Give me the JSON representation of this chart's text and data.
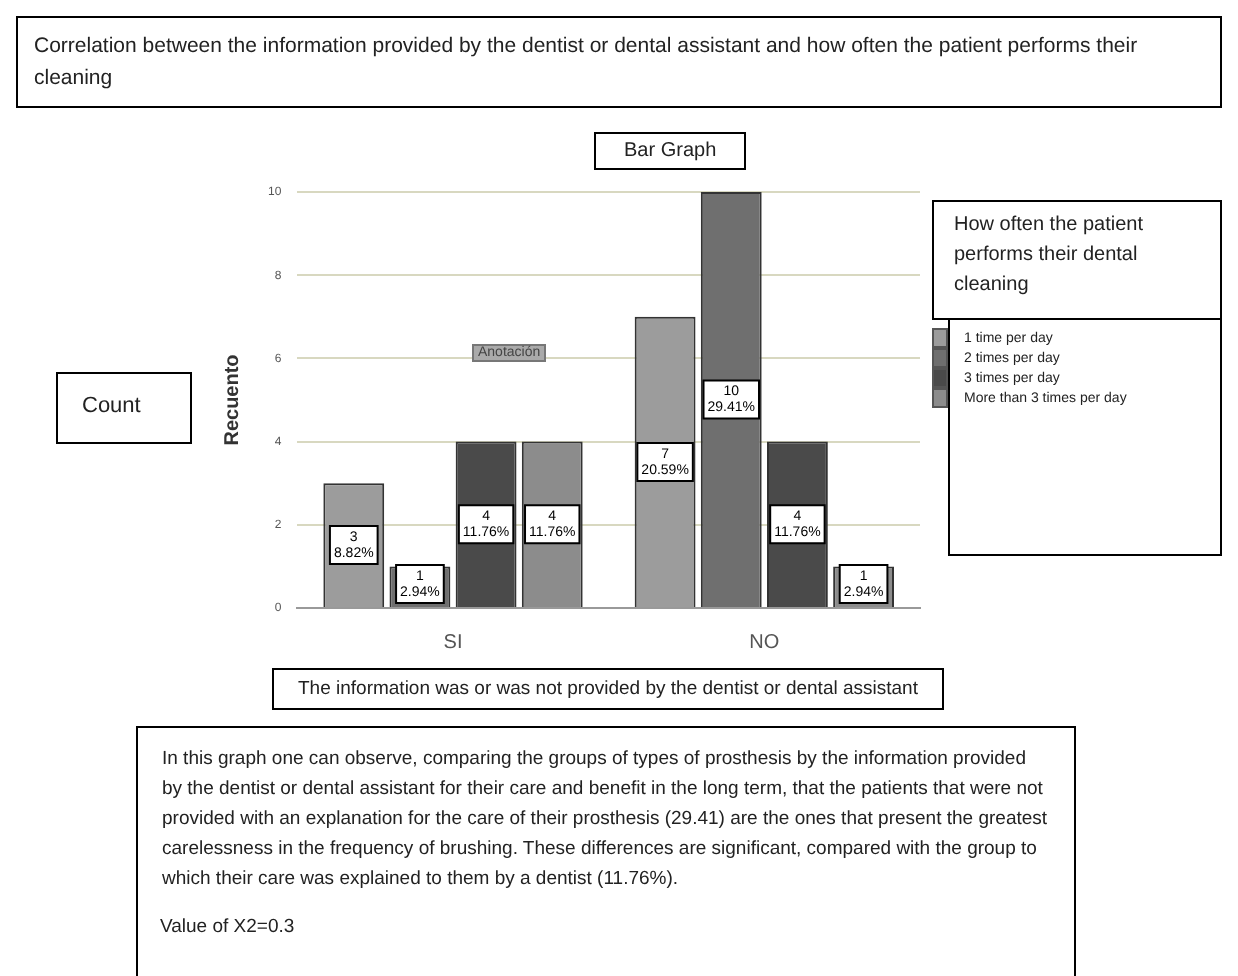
{
  "chart_data": {
    "type": "bar",
    "title": "Correlation between the information provided by the dentist or dental assistant and how often the patient performs their cleaning",
    "subtitle": "Bar Graph",
    "xlabel": "The information was or was not provided by the dentist or dental assistant",
    "ylabel": "Recuento",
    "legend_title": "How often the patient performs their dental cleaning",
    "categories": [
      "SI",
      "NO"
    ],
    "series": [
      {
        "name": "1 time per day",
        "color": "#9c9c9c",
        "values": [
          3,
          7
        ],
        "value_labels": [
          "3\n8.82%",
          "7\n20.59%"
        ]
      },
      {
        "name": "2 times per day",
        "color": "#6f6f6f",
        "values": [
          1,
          10
        ],
        "value_labels": [
          "1\n2.94%",
          "10\n29.41%"
        ]
      },
      {
        "name": "3 times per day",
        "color": "#4a4a4a",
        "values": [
          4,
          4
        ],
        "value_labels": [
          "4\n11.76%",
          "4\n11.76%"
        ]
      },
      {
        "name": "More than 3 times per day",
        "color": "#8c8c8c",
        "values": [
          4,
          1
        ],
        "value_labels": [
          "4\n11.76%",
          "1\n2.94%"
        ]
      }
    ],
    "ylim": [
      0,
      10
    ],
    "yticks": [
      0,
      2,
      4,
      6,
      8,
      10
    ],
    "grid": "y",
    "legend": "right",
    "annotations": [
      "Anotación",
      "Count",
      "In this graph one can observe, comparing the groups of types of prosthesis by the information provided by the dentist or dental assistant for their care and benefit in the long term, that the patients that were not provided with an explanation for the care of their prosthesis (29.41) are the ones that present the greatest carelessness in the frequency of brushing. These differences are significant, compared with the group to which their care was explained to them by a dentist (11.76%).",
      "Value of X2=0.3"
    ]
  }
}
